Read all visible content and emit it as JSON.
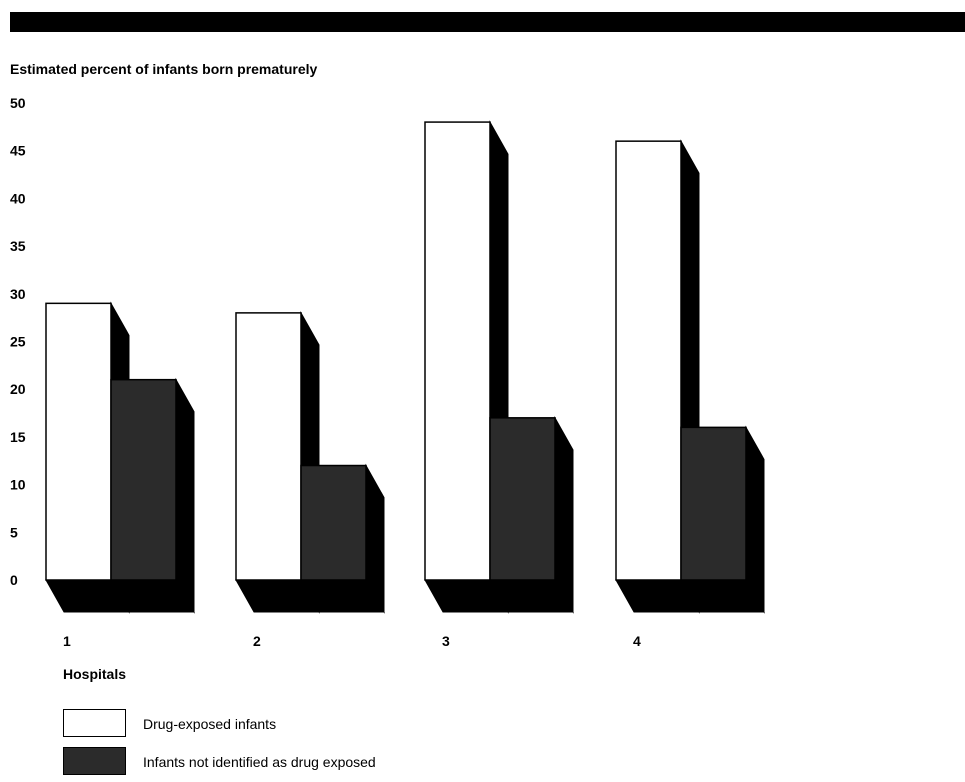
{
  "colors": {
    "ink": "#000000",
    "paper": "#ffffff",
    "top_bar": "#000000",
    "drug_exposed_fill": "#ffffff",
    "not_identified_fill": "#2b2b2b"
  },
  "chart_data": {
    "type": "bar",
    "title": "",
    "ylabel": "Estimated percent of infants born prematurely",
    "xlabel": "Hospitals",
    "categories": [
      "1",
      "2",
      "3",
      "4"
    ],
    "yticks": [
      "0",
      "5",
      "10",
      "15",
      "20",
      "25",
      "30",
      "35",
      "40",
      "45",
      "50"
    ],
    "ylim": [
      0,
      50
    ],
    "grid": false,
    "legend_position": "bottom-left",
    "series": [
      {
        "name": "Drug-exposed infants",
        "values": [
          29,
          28,
          48,
          46
        ]
      },
      {
        "name": "Infants not identified as drug exposed",
        "values": [
          21,
          12,
          17,
          16
        ]
      }
    ]
  }
}
